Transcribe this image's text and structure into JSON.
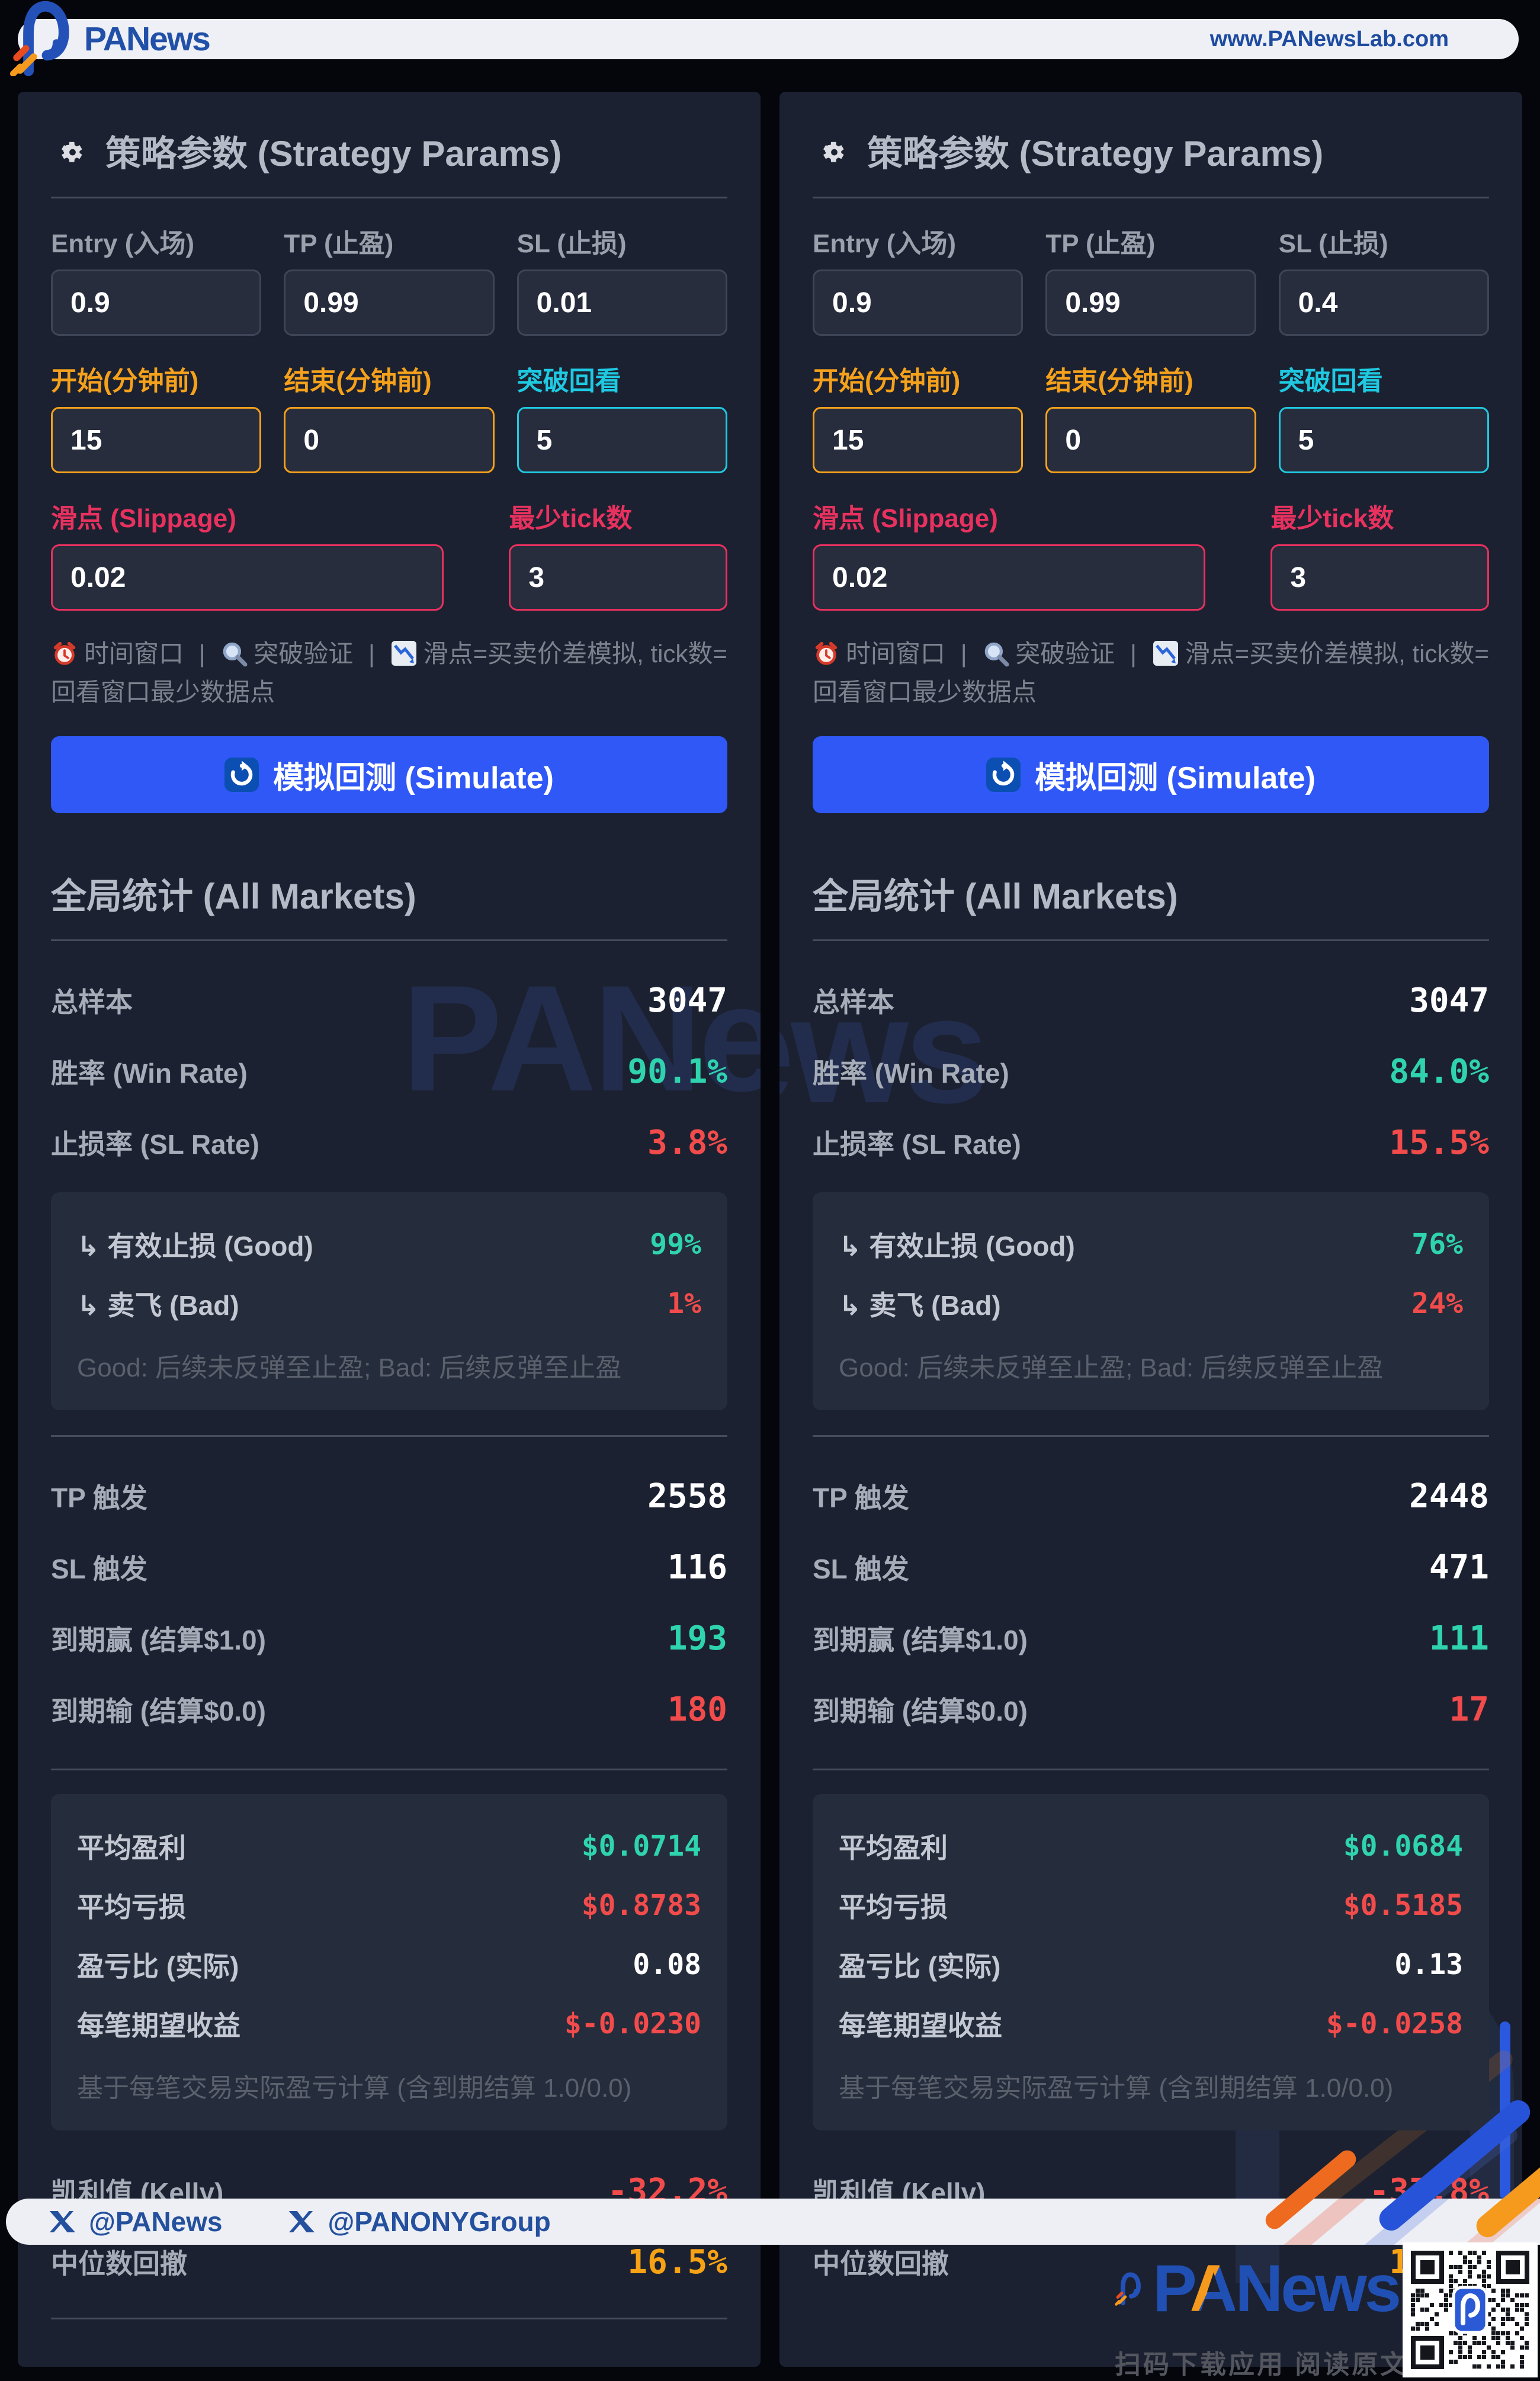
{
  "header": {
    "brand": "PANews",
    "url": "www.PANewsLab.com"
  },
  "watermark": "PANews",
  "colors": {
    "page_bg": "#04060c",
    "panel_bg": "#1b2130",
    "subbox_bg": "#252c3b",
    "accent_button_blue": "#2f58f7",
    "orange": "#f5a11c",
    "cyan": "#1fc9e2",
    "pink": "#e8315f",
    "teal": "#2fd3ae",
    "red": "#f24b4b",
    "amber": "#f7a215",
    "brand_blue": "#2150a8"
  },
  "panels": [
    {
      "title": "策略参数 (Strategy Params)",
      "params": {
        "entry": {
          "label": "Entry (入场)",
          "value": "0.9"
        },
        "tp": {
          "label": "TP (止盈)",
          "value": "0.99"
        },
        "sl": {
          "label": "SL (止损)",
          "value": "0.01"
        },
        "start": {
          "label": "开始(分钟前)",
          "value": "15"
        },
        "end": {
          "label": "结束(分钟前)",
          "value": "0"
        },
        "lookback": {
          "label": "突破回看",
          "value": "5"
        },
        "slippage": {
          "label": "滑点 (Slippage)",
          "value": "0.02"
        },
        "min_ticks": {
          "label": "最少tick数",
          "value": "3"
        }
      },
      "info": {
        "sep": "|",
        "time": "时间窗口",
        "verify": "突破验证",
        "note": "滑点=买卖价差模拟, tick数=回看窗口最少数据点"
      },
      "simulate_label": "模拟回测 (Simulate)",
      "stats": {
        "title": "全局统计 (All Markets)",
        "total": {
          "label": "总样本",
          "value": "3047"
        },
        "win_rate": {
          "label": "胜率 (Win Rate)",
          "value": "90.1%"
        },
        "sl_rate": {
          "label": "止损率 (SL Rate)",
          "value": "3.8%"
        },
        "good": {
          "label": "↳ 有效止损 (Good)",
          "value": "99%"
        },
        "bad": {
          "label": "↳ 卖飞 (Bad)",
          "value": "1%"
        },
        "good_bad_note": "Good: 后续未反弹至止盈; Bad: 后续反弹至止盈",
        "tp_trigger": {
          "label": "TP 触发",
          "value": "2558"
        },
        "sl_trigger": {
          "label": "SL 触发",
          "value": "116"
        },
        "expiry_win": {
          "label": "到期赢 (结算$1.0)",
          "value": "193"
        },
        "expiry_lose": {
          "label": "到期输 (结算$0.0)",
          "value": "180"
        },
        "avg_profit": {
          "label": "平均盈利",
          "value": "$0.0714"
        },
        "avg_loss": {
          "label": "平均亏损",
          "value": "$0.8783"
        },
        "pl_ratio": {
          "label": "盈亏比 (实际)",
          "value": "0.08"
        },
        "expectancy": {
          "label": "每笔期望收益",
          "value": "$-0.0230"
        },
        "calc_note": "基于每笔交易实际盈亏计算 (含到期结算 1.0/0.0)",
        "kelly": {
          "label": "凯利值 (Kelly)",
          "value": "-32.2%"
        },
        "median_dd": {
          "label": "中位数回撤",
          "value": "16.5%"
        }
      }
    },
    {
      "title": "策略参数 (Strategy Params)",
      "params": {
        "entry": {
          "label": "Entry (入场)",
          "value": "0.9"
        },
        "tp": {
          "label": "TP (止盈)",
          "value": "0.99"
        },
        "sl": {
          "label": "SL (止损)",
          "value": "0.4"
        },
        "start": {
          "label": "开始(分钟前)",
          "value": "15"
        },
        "end": {
          "label": "结束(分钟前)",
          "value": "0"
        },
        "lookback": {
          "label": "突破回看",
          "value": "5"
        },
        "slippage": {
          "label": "滑点 (Slippage)",
          "value": "0.02"
        },
        "min_ticks": {
          "label": "最少tick数",
          "value": "3"
        }
      },
      "info": {
        "sep": "|",
        "time": "时间窗口",
        "verify": "突破验证",
        "note": "滑点=买卖价差模拟, tick数=回看窗口最少数据点"
      },
      "simulate_label": "模拟回测 (Simulate)",
      "stats": {
        "title": "全局统计 (All Markets)",
        "total": {
          "label": "总样本",
          "value": "3047"
        },
        "win_rate": {
          "label": "胜率 (Win Rate)",
          "value": "84.0%"
        },
        "sl_rate": {
          "label": "止损率 (SL Rate)",
          "value": "15.5%"
        },
        "good": {
          "label": "↳ 有效止损 (Good)",
          "value": "76%"
        },
        "bad": {
          "label": "↳ 卖飞 (Bad)",
          "value": "24%"
        },
        "good_bad_note": "Good: 后续未反弹至止盈; Bad: 后续反弹至止盈",
        "tp_trigger": {
          "label": "TP 触发",
          "value": "2448"
        },
        "sl_trigger": {
          "label": "SL 触发",
          "value": "471"
        },
        "expiry_win": {
          "label": "到期赢 (结算$1.0)",
          "value": "111"
        },
        "expiry_lose": {
          "label": "到期输 (结算$0.0)",
          "value": "17"
        },
        "avg_profit": {
          "label": "平均盈利",
          "value": "$0.0684"
        },
        "avg_loss": {
          "label": "平均亏损",
          "value": "$0.5185"
        },
        "pl_ratio": {
          "label": "盈亏比 (实际)",
          "value": "0.13"
        },
        "expectancy": {
          "label": "每笔期望收益",
          "value": "$-0.0258"
        },
        "calc_note": "基于每笔交易实际盈亏计算 (含到期结算 1.0/0.0)",
        "kelly": {
          "label": "凯利值 (Kelly)",
          "value": "-37.8%"
        },
        "median_dd": {
          "label": "中位数回撤",
          "value": "16.5%"
        }
      }
    }
  ],
  "footer": {
    "handle_panews": "@PANews",
    "handle_panony": "@PANONYGroup",
    "brand": "PANews",
    "tagline": "扫码下载应用  阅读原文"
  }
}
